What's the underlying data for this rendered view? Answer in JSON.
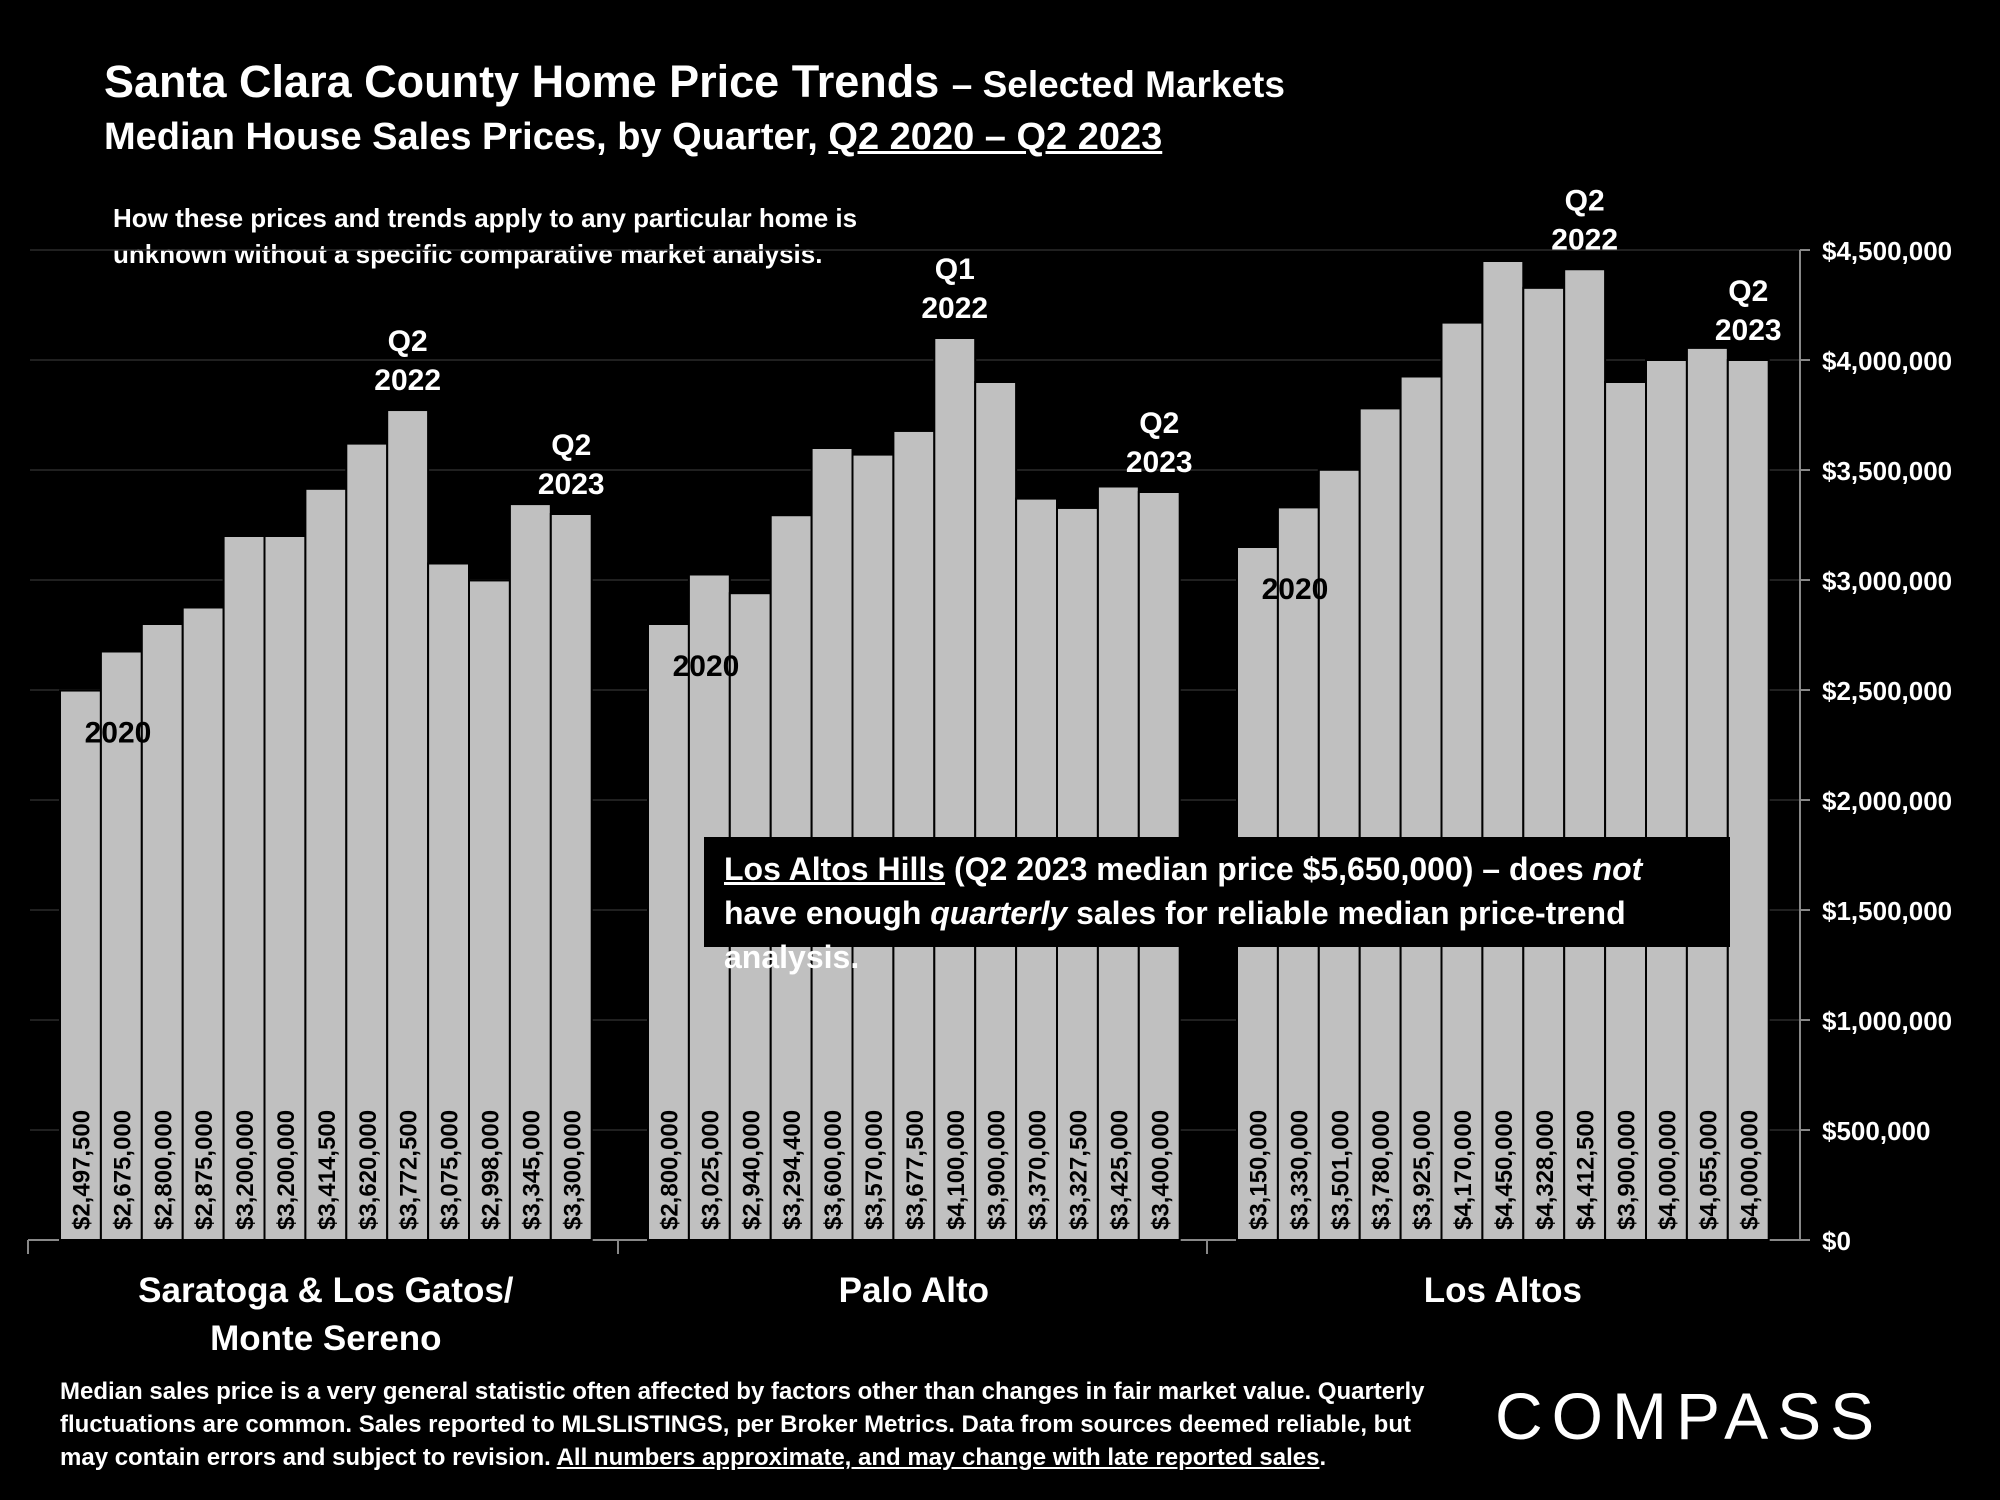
{
  "title": "Santa Clara County Home Price Trends",
  "title_suffix": "– Selected Markets",
  "subtitle_prefix": "Median House Sales Prices, by Quarter,",
  "subtitle_range": "Q2 2020 – Q2 2023",
  "note": "How these prices and trends apply to any particular home is unknown without a specific comparative market analysis.",
  "callout": {
    "place": "Los Altos Hills",
    "part1": "(Q2 2023 median price $5,650,000) – does",
    "not": "not",
    "part2": "have enough",
    "quarterly": "quarterly",
    "part3": "sales for reliable median price-trend analysis."
  },
  "footer": {
    "text": "Median sales price is a very general statistic often affected by factors other than changes in fair market value. Quarterly fluctuations are common. Sales reported to MLSLISTINGS, per Broker Metrics. Data from sources deemed reliable, but may contain errors and subject to revision.",
    "underlined": "All numbers approximate, and may change with late reported sales",
    "end": "."
  },
  "logo": "COMPASS",
  "chart_data": {
    "type": "bar",
    "ylim": [
      0,
      4500000
    ],
    "y_ticks": [
      "$0",
      "$500,000",
      "$1,000,000",
      "$1,500,000",
      "$2,000,000",
      "$2,500,000",
      "$3,000,000",
      "$3,500,000",
      "$4,000,000",
      "$4,500,000"
    ],
    "y_tick_values": [
      0,
      500000,
      1000000,
      1500000,
      2000000,
      2500000,
      3000000,
      3500000,
      4000000,
      4500000
    ],
    "y_axis_side": "right",
    "grid": true,
    "bar_color": "#c0c0c0",
    "groups": [
      {
        "label": "Saratoga & Los Gatos/ Monte Sereno",
        "label_lines": [
          "Saratoga & Los Gatos/",
          "Monte Sereno"
        ],
        "values": [
          2497500,
          2675000,
          2800000,
          2875000,
          3200000,
          3200000,
          3414500,
          3620000,
          3772500,
          3075000,
          2998000,
          3345000,
          3300000
        ],
        "value_labels": [
          "$2,497,500",
          "$2,675,000",
          "$2,800,000",
          "$2,875,000",
          "$3,200,000",
          "$3,200,000",
          "$3,414,500",
          "$3,620,000",
          "$3,772,500",
          "$3,075,000",
          "$2,998,000",
          "$3,345,000",
          "$3,300,000"
        ],
        "annotations": [
          {
            "bar_index": 0,
            "lines": [
              "2020"
            ],
            "position": "inside-bar"
          },
          {
            "bar_index": 8,
            "lines": [
              "Q2",
              "2022"
            ],
            "position": "above-bar"
          },
          {
            "bar_index": 12,
            "lines": [
              "Q2",
              "2023"
            ],
            "position": "above-bar"
          }
        ]
      },
      {
        "label": "Palo Alto",
        "label_lines": [
          "Palo Alto"
        ],
        "values": [
          2800000,
          3025000,
          2940000,
          3294400,
          3600000,
          3570000,
          3677500,
          4100000,
          3900000,
          3370000,
          3327500,
          3425000,
          3400000
        ],
        "value_labels": [
          "$2,800,000",
          "$3,025,000",
          "$2,940,000",
          "$3,294,400",
          "$3,600,000",
          "$3,570,000",
          "$3,677,500",
          "$4,100,000",
          "$3,900,000",
          "$3,370,000",
          "$3,327,500",
          "$3,425,000",
          "$3,400,000"
        ],
        "annotations": [
          {
            "bar_index": 0,
            "lines": [
              "2020"
            ],
            "position": "inside-bar"
          },
          {
            "bar_index": 7,
            "lines": [
              "Q1",
              "2022"
            ],
            "position": "above-bar"
          },
          {
            "bar_index": 12,
            "lines": [
              "Q2",
              "2023"
            ],
            "position": "above-bar"
          }
        ]
      },
      {
        "label": "Los Altos",
        "label_lines": [
          "Los Altos"
        ],
        "values": [
          3150000,
          3330000,
          3501000,
          3780000,
          3925000,
          4170000,
          4450000,
          4328000,
          4412500,
          3900000,
          4000000,
          4055000,
          4000000
        ],
        "value_labels": [
          "$3,150,000",
          "$3,330,000",
          "$3,501,000",
          "$3,780,000",
          "$3,925,000",
          "$4,170,000",
          "$4,450,000",
          "$4,328,000",
          "$4,412,500",
          "$3,900,000",
          "$4,000,000",
          "$4,055,000",
          "$4,000,000"
        ],
        "annotations": [
          {
            "bar_index": 0,
            "lines": [
              "2020"
            ],
            "position": "inside-bar"
          },
          {
            "bar_index": 8,
            "lines": [
              "Q2",
              "2022"
            ],
            "position": "above-bar"
          },
          {
            "bar_index": 12,
            "lines": [
              "Q2",
              "2023"
            ],
            "position": "above-bar"
          }
        ]
      }
    ]
  }
}
